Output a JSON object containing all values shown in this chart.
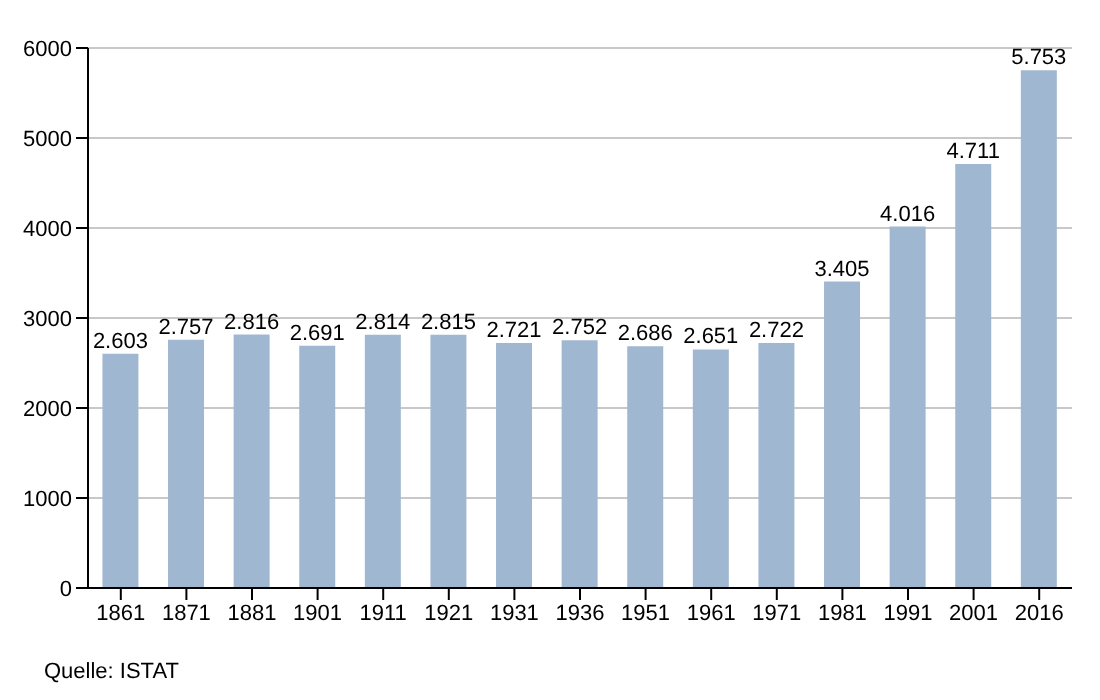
{
  "chart_data": {
    "type": "bar",
    "categories": [
      "1861",
      "1871",
      "1881",
      "1901",
      "1911",
      "1921",
      "1931",
      "1936",
      "1951",
      "1961",
      "1971",
      "1981",
      "1991",
      "2001",
      "2016"
    ],
    "values": [
      2603,
      2757,
      2816,
      2691,
      2814,
      2815,
      2721,
      2752,
      2686,
      2651,
      2722,
      3405,
      4016,
      4711,
      5753
    ],
    "value_labels": [
      "2.603",
      "2.757",
      "2.816",
      "2.691",
      "2.814",
      "2.815",
      "2.721",
      "2.752",
      "2.686",
      "2.651",
      "2.722",
      "3.405",
      "4.016",
      "4.711",
      "5.753"
    ],
    "color": "#a0b7d1",
    "ylim": [
      0,
      6000
    ],
    "yticks": [
      0,
      1000,
      2000,
      3000,
      4000,
      5000,
      6000
    ],
    "grid": "y",
    "annotations": [
      "Quelle: ISTAT"
    ]
  }
}
